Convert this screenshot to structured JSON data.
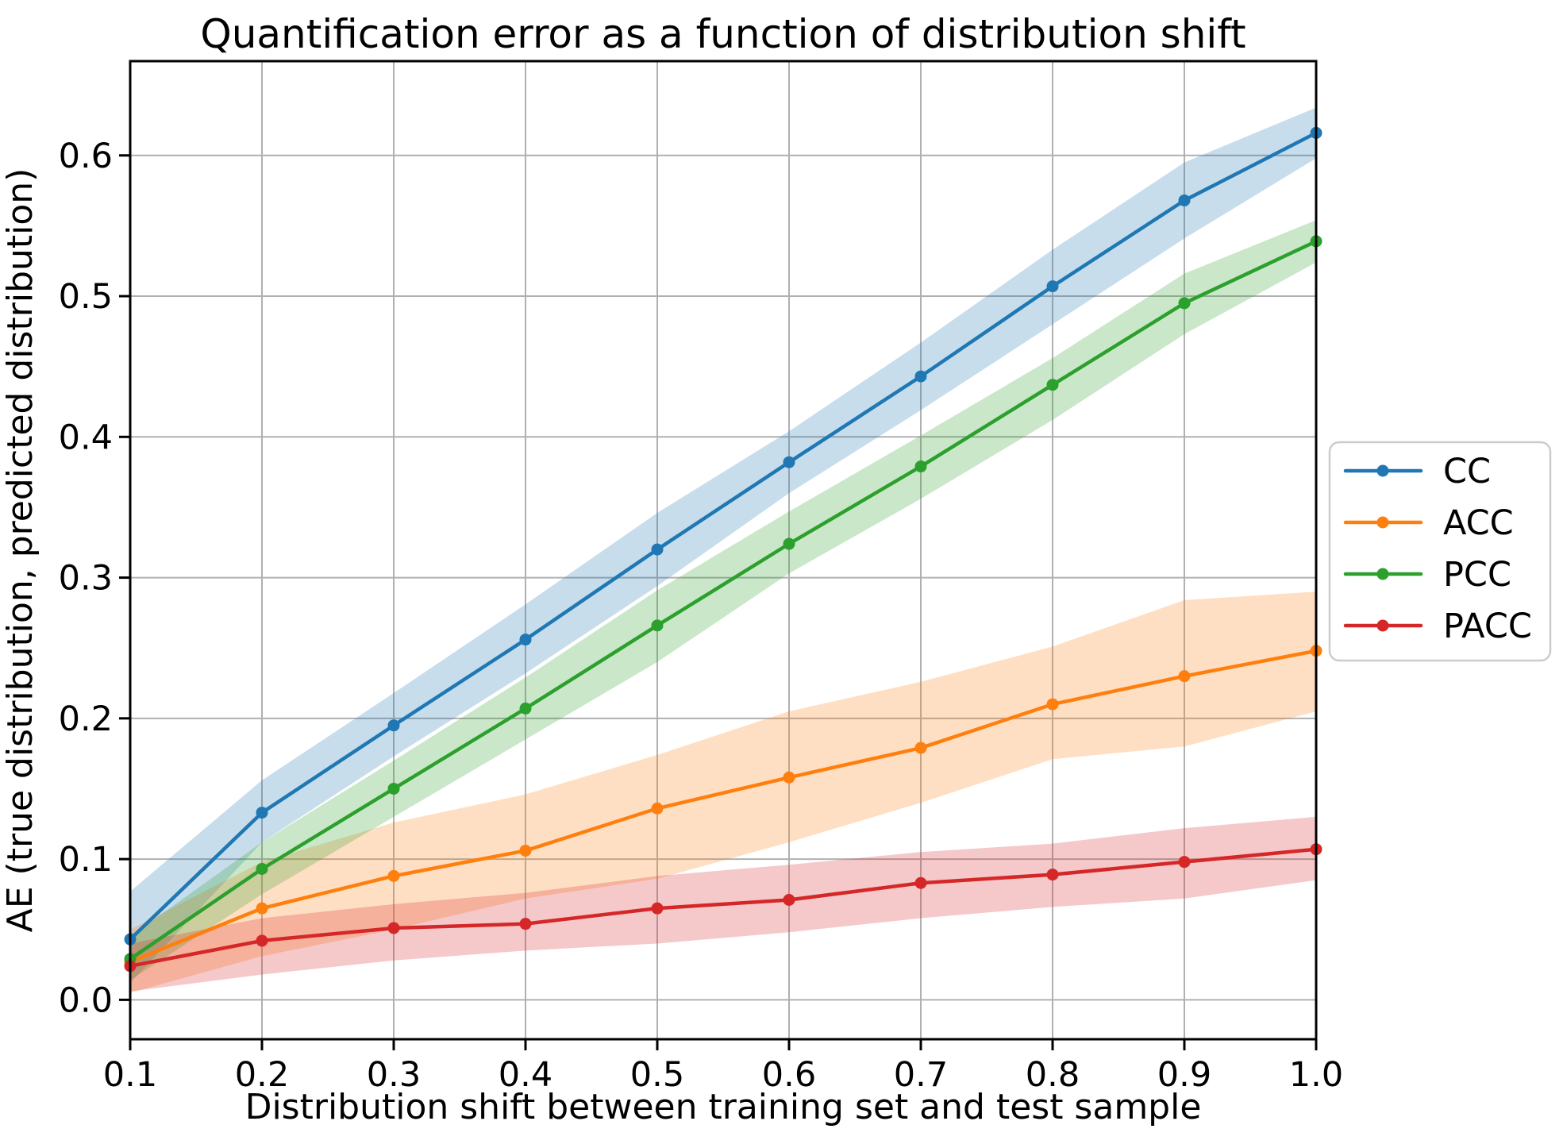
{
  "chart_data": {
    "type": "line",
    "title": "Quantification error as a function of distribution shift",
    "xlabel": "Distribution shift between training set and test sample",
    "ylabel": "AE (true distribution, predicted distribution)",
    "grid": true,
    "grid_color": "#b0b0b0",
    "spine_color": "#000000",
    "background_color": "#ffffff",
    "legend_position": "right-outside",
    "band_alpha": 0.25,
    "xlim": [
      0.1,
      1.0
    ],
    "ylim": [
      -0.028,
      0.667
    ],
    "x": [
      0.1,
      0.2,
      0.3,
      0.4,
      0.5,
      0.6,
      0.7,
      0.8,
      0.9,
      1.0
    ],
    "xtick_labels": [
      "0.1",
      "0.2",
      "0.3",
      "0.4",
      "0.5",
      "0.6",
      "0.7",
      "0.8",
      "0.9",
      "1.0"
    ],
    "yticks": [
      0.0,
      0.1,
      0.2,
      0.3,
      0.4,
      0.5,
      0.6
    ],
    "ytick_labels": [
      "0.0",
      "0.1",
      "0.2",
      "0.3",
      "0.4",
      "0.5",
      "0.6"
    ],
    "series": [
      {
        "name": "CC",
        "color": "#1f77b4",
        "values": [
          0.043,
          0.133,
          0.195,
          0.256,
          0.32,
          0.382,
          0.443,
          0.507,
          0.568,
          0.616
        ],
        "band_lower": [
          0.012,
          0.112,
          0.173,
          0.232,
          0.294,
          0.36,
          0.419,
          0.48,
          0.541,
          0.598
        ],
        "band_upper": [
          0.077,
          0.156,
          0.218,
          0.281,
          0.346,
          0.404,
          0.467,
          0.533,
          0.595,
          0.634
        ]
      },
      {
        "name": "ACC",
        "color": "#ff7f0e",
        "values": [
          0.027,
          0.065,
          0.088,
          0.106,
          0.136,
          0.158,
          0.179,
          0.21,
          0.23,
          0.248
        ],
        "band_lower": [
          0.005,
          0.031,
          0.05,
          0.072,
          0.086,
          0.112,
          0.14,
          0.171,
          0.18,
          0.205
        ],
        "band_upper": [
          0.05,
          0.098,
          0.126,
          0.146,
          0.174,
          0.205,
          0.226,
          0.251,
          0.284,
          0.29
        ]
      },
      {
        "name": "PCC",
        "color": "#2ca02c",
        "values": [
          0.029,
          0.093,
          0.15,
          0.207,
          0.266,
          0.324,
          0.379,
          0.437,
          0.495,
          0.539
        ],
        "band_lower": [
          0.014,
          0.075,
          0.13,
          0.185,
          0.24,
          0.303,
          0.356,
          0.412,
          0.473,
          0.524
        ],
        "band_upper": [
          0.045,
          0.112,
          0.17,
          0.229,
          0.291,
          0.347,
          0.401,
          0.456,
          0.516,
          0.554
        ]
      },
      {
        "name": "PACC",
        "color": "#d62728",
        "values": [
          0.024,
          0.042,
          0.051,
          0.054,
          0.065,
          0.071,
          0.083,
          0.089,
          0.098,
          0.107
        ],
        "band_lower": [
          0.006,
          0.018,
          0.028,
          0.035,
          0.04,
          0.048,
          0.058,
          0.066,
          0.072,
          0.085
        ],
        "band_upper": [
          0.04,
          0.058,
          0.068,
          0.076,
          0.088,
          0.096,
          0.105,
          0.111,
          0.122,
          0.13
        ]
      }
    ]
  }
}
